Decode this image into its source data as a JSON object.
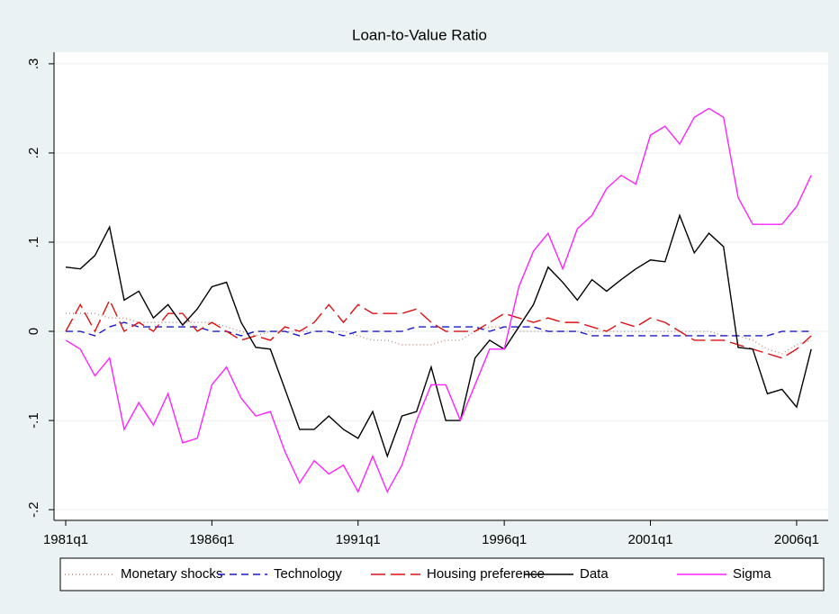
{
  "chart_data": {
    "type": "line",
    "title": "Loan-to-Value Ratio",
    "x": [
      1981,
      1981.5,
      1982,
      1982.5,
      1983,
      1983.5,
      1984,
      1984.5,
      1985,
      1985.5,
      1986,
      1986.5,
      1987,
      1987.5,
      1988,
      1988.5,
      1989,
      1989.5,
      1990,
      1990.5,
      1991,
      1991.5,
      1992,
      1992.5,
      1993,
      1993.5,
      1994,
      1994.5,
      1995,
      1995.5,
      1996,
      1996.5,
      1997,
      1997.5,
      1998,
      1998.5,
      1999,
      1999.5,
      2000,
      2000.5,
      2001,
      2001.5,
      2002,
      2002.5,
      2003,
      2003.5,
      2004,
      2004.5,
      2005,
      2005.5,
      2006,
      2006.5
    ],
    "xlim": [
      1980.6,
      2007.08
    ],
    "xticks": [
      {
        "value": 1981,
        "label": "1981q1"
      },
      {
        "value": 1986,
        "label": "1986q1"
      },
      {
        "value": 1991,
        "label": "1991q1"
      },
      {
        "value": 1996,
        "label": "1996q1"
      },
      {
        "value": 2001,
        "label": "2001q1"
      },
      {
        "value": 2006,
        "label": "2006q1"
      }
    ],
    "ylim": [
      -0.212,
      0.313
    ],
    "yticks": [
      {
        "value": -0.2,
        "label": "-.2"
      },
      {
        "value": -0.1,
        "label": "-.1"
      },
      0,
      {
        "value": 0.1,
        "label": ".1"
      },
      {
        "value": 0.2,
        "label": ".2"
      },
      {
        "value": 0.3,
        "label": ".3"
      }
    ],
    "grid": true,
    "series": [
      {
        "name": "Monetary shocks",
        "color": "#c08a80",
        "style": "dotted",
        "values": [
          0.02,
          0.02,
          0.02,
          0.015,
          0.015,
          0.01,
          0.01,
          0.01,
          0.01,
          0.01,
          0.01,
          0.005,
          0,
          -0.005,
          0,
          0,
          0,
          0,
          0,
          0,
          -0.005,
          -0.01,
          -0.01,
          -0.015,
          -0.015,
          -0.015,
          -0.01,
          -0.01,
          0,
          0.005,
          0.005,
          0,
          0,
          0,
          0,
          0,
          0,
          0,
          0,
          0,
          0,
          0,
          0,
          0,
          0,
          -0.005,
          -0.005,
          -0.01,
          -0.02,
          -0.025,
          -0.015,
          -0.01
        ]
      },
      {
        "name": "Technology",
        "color": "#1a1acc",
        "style": "dashed",
        "values": [
          0,
          0,
          -0.005,
          0.005,
          0.01,
          0.005,
          0.005,
          0.005,
          0.005,
          0.005,
          0,
          0,
          -0.005,
          0,
          0,
          0,
          -0.005,
          0,
          0,
          -0.005,
          0,
          0,
          0,
          0,
          0.005,
          0.005,
          0.005,
          0.005,
          0.005,
          0,
          0.005,
          0.005,
          0.005,
          0,
          0,
          0,
          -0.005,
          -0.005,
          -0.005,
          -0.005,
          -0.005,
          -0.005,
          -0.005,
          -0.005,
          -0.005,
          -0.005,
          -0.005,
          -0.005,
          -0.005,
          0,
          0,
          0
        ]
      },
      {
        "name": "Housing preference",
        "color": "#dd1111",
        "style": "longdash",
        "values": [
          0,
          0.03,
          0,
          0.035,
          0,
          0.01,
          0,
          0.02,
          0.02,
          0,
          0.01,
          0,
          -0.01,
          -0.005,
          -0.01,
          0.005,
          0,
          0.01,
          0.03,
          0.01,
          0.03,
          0.02,
          0.02,
          0.02,
          0.025,
          0.01,
          0,
          0,
          0,
          0.01,
          0.02,
          0.015,
          0.01,
          0.015,
          0.01,
          0.01,
          0.005,
          0,
          0.01,
          0.005,
          0.015,
          0.01,
          0,
          -0.01,
          -0.01,
          -0.01,
          -0.015,
          -0.02,
          -0.025,
          -0.03,
          -0.02,
          -0.005
        ]
      },
      {
        "name": "Data",
        "color": "#000000",
        "style": "solid",
        "values": [
          0.072,
          0.07,
          0.085,
          0.117,
          0.035,
          0.045,
          0.015,
          0.03,
          0.007,
          0.025,
          0.05,
          0.055,
          0.01,
          -0.018,
          -0.02,
          -0.065,
          -0.11,
          -0.11,
          -0.095,
          -0.11,
          -0.12,
          -0.09,
          -0.14,
          -0.095,
          -0.09,
          -0.04,
          -0.1,
          -0.1,
          -0.03,
          -0.01,
          -0.02,
          0.005,
          0.03,
          0.072,
          0.055,
          0.035,
          0.058,
          0.045,
          0.058,
          0.07,
          0.08,
          0.078,
          0.13,
          0.088,
          0.11,
          0.095,
          -0.018,
          -0.02,
          -0.07,
          -0.065,
          -0.085,
          -0.02
        ]
      },
      {
        "name": "Sigma",
        "color": "#ff22ff",
        "style": "solid",
        "values": [
          -0.01,
          -0.02,
          -0.05,
          -0.03,
          -0.11,
          -0.08,
          -0.105,
          -0.07,
          -0.125,
          -0.12,
          -0.06,
          -0.04,
          -0.075,
          -0.095,
          -0.09,
          -0.135,
          -0.17,
          -0.145,
          -0.16,
          -0.15,
          -0.18,
          -0.14,
          -0.18,
          -0.15,
          -0.1,
          -0.06,
          -0.06,
          -0.1,
          -0.06,
          -0.02,
          -0.02,
          0.05,
          0.09,
          0.11,
          0.07,
          0.115,
          0.13,
          0.16,
          0.175,
          0.165,
          0.22,
          0.23,
          0.21,
          0.24,
          0.25,
          0.24,
          0.15,
          0.12,
          0.12,
          0.12,
          0.14,
          0.175
        ]
      }
    ]
  }
}
